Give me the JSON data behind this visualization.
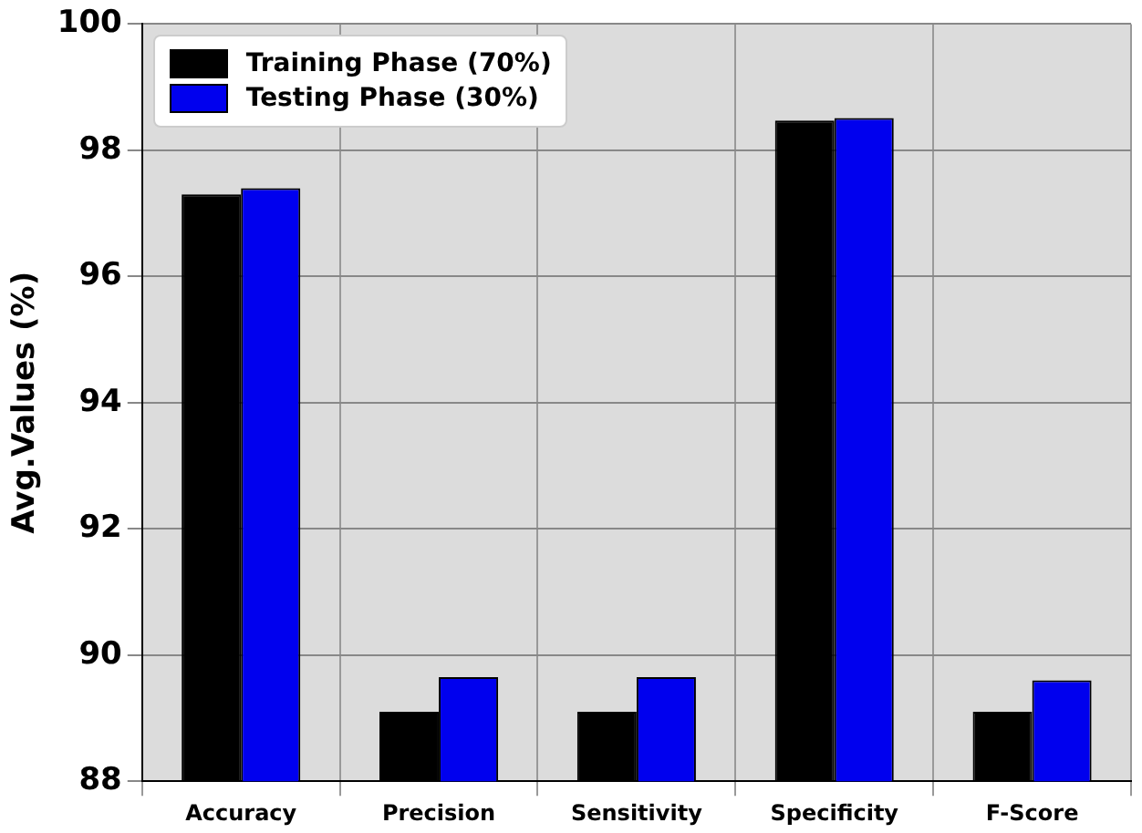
{
  "chart_data": {
    "type": "bar",
    "ylabel": "Avg.Values (%)",
    "categories": [
      "Accuracy",
      "Precision",
      "Sensitivity",
      "Specificity",
      "F-Score"
    ],
    "series": [
      {
        "name": "Training Phase (70%)",
        "color": "#000000",
        "values": [
          97.3,
          89.1,
          89.1,
          98.47,
          89.1
        ]
      },
      {
        "name": "Testing Phase (30%)",
        "color": "#0000ee",
        "values": [
          97.4,
          89.65,
          89.65,
          98.51,
          89.6
        ]
      }
    ],
    "ylim": [
      88,
      100
    ],
    "yticks": [
      88,
      90,
      92,
      94,
      96,
      98,
      100
    ],
    "grid": true,
    "legend": "top left"
  }
}
